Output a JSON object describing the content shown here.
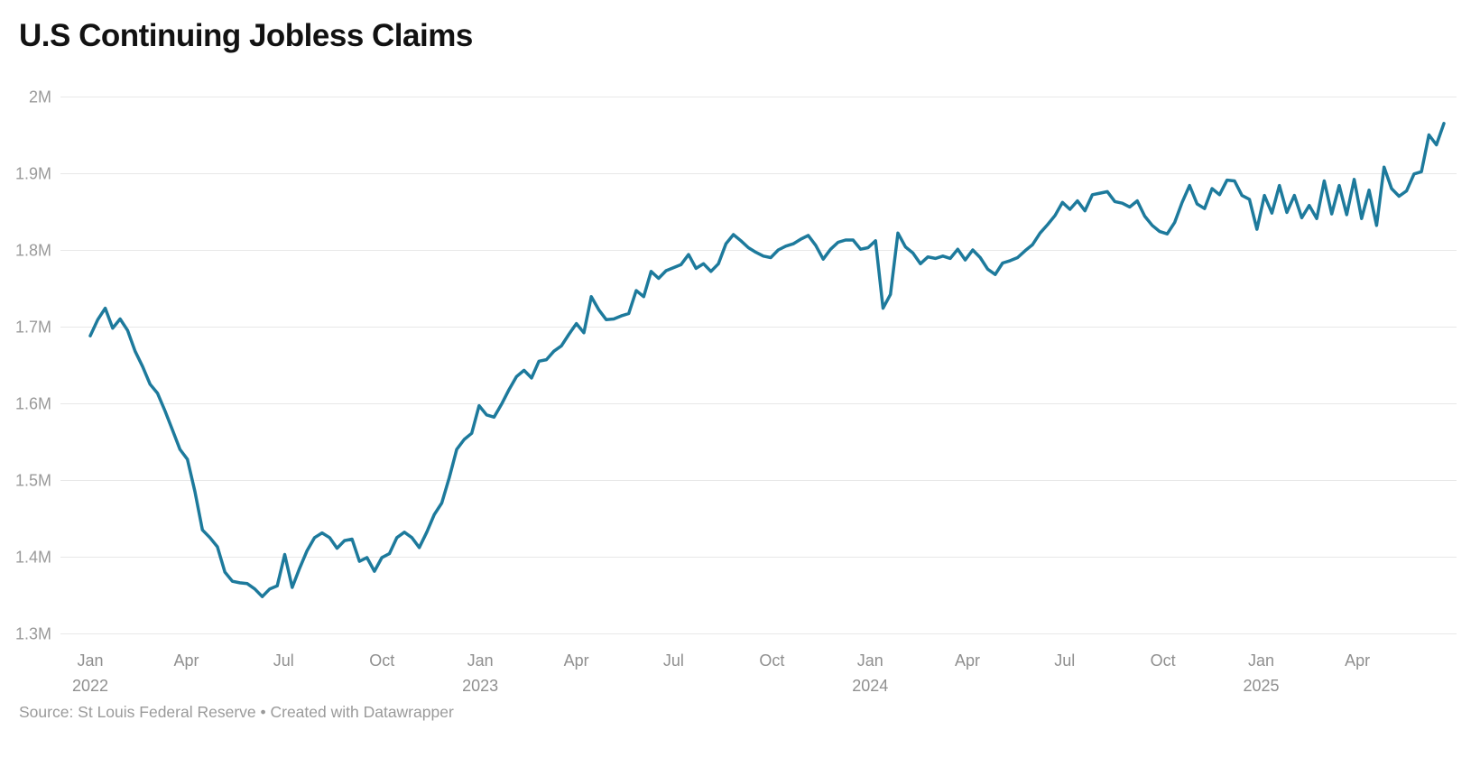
{
  "title": "U.S Continuing Jobless Claims",
  "source_line": "Source: St Louis Federal Reserve • Created with Datawrapper",
  "colors": {
    "line": "#1d7a9c",
    "grid": "#e8e8e8",
    "y_tick_label": "#9a9a9a",
    "x_tick_label": "#8f8f8f",
    "title": "#121212",
    "background": "#ffffff"
  },
  "chart_data": {
    "type": "line",
    "title": "U.S Continuing Jobless Claims",
    "series_name": "Continuing jobless claims",
    "unit": "millions",
    "start_date": "2022-01-01",
    "frequency": "weekly",
    "ylim": [
      1.3,
      2.0
    ],
    "grid": "horizontal",
    "legend": "none",
    "y_ticks": [
      {
        "value": 2.0,
        "label": "2M"
      },
      {
        "value": 1.9,
        "label": "1.9M"
      },
      {
        "value": 1.8,
        "label": "1.8M"
      },
      {
        "value": 1.7,
        "label": "1.7M"
      },
      {
        "value": 1.6,
        "label": "1.6M"
      },
      {
        "value": 1.5,
        "label": "1.5M"
      },
      {
        "value": 1.4,
        "label": "1.4M"
      },
      {
        "value": 1.3,
        "label": "1.3M"
      }
    ],
    "x_ticks": [
      {
        "date": "2022-01-01",
        "label": "Jan",
        "year": "2022"
      },
      {
        "date": "2022-04-01",
        "label": "Apr"
      },
      {
        "date": "2022-07-01",
        "label": "Jul"
      },
      {
        "date": "2022-10-01",
        "label": "Oct"
      },
      {
        "date": "2023-01-01",
        "label": "Jan",
        "year": "2023"
      },
      {
        "date": "2023-04-01",
        "label": "Apr"
      },
      {
        "date": "2023-07-01",
        "label": "Jul"
      },
      {
        "date": "2023-10-01",
        "label": "Oct"
      },
      {
        "date": "2024-01-01",
        "label": "Jan",
        "year": "2024"
      },
      {
        "date": "2024-04-01",
        "label": "Apr"
      },
      {
        "date": "2024-07-01",
        "label": "Jul"
      },
      {
        "date": "2024-10-01",
        "label": "Oct"
      },
      {
        "date": "2025-01-01",
        "label": "Jan",
        "year": "2025"
      },
      {
        "date": "2025-04-01",
        "label": "Apr"
      }
    ],
    "values_millions": [
      1.688,
      1.709,
      1.724,
      1.698,
      1.71,
      1.695,
      1.668,
      1.648,
      1.625,
      1.613,
      1.59,
      1.565,
      1.54,
      1.527,
      1.485,
      1.435,
      1.425,
      1.413,
      1.38,
      1.368,
      1.366,
      1.365,
      1.358,
      1.348,
      1.358,
      1.362,
      1.403,
      1.36,
      1.385,
      1.408,
      1.425,
      1.431,
      1.425,
      1.411,
      1.421,
      1.423,
      1.394,
      1.399,
      1.381,
      1.399,
      1.404,
      1.425,
      1.432,
      1.425,
      1.412,
      1.432,
      1.455,
      1.47,
      1.503,
      1.54,
      1.553,
      1.561,
      1.597,
      1.585,
      1.582,
      1.599,
      1.618,
      1.635,
      1.643,
      1.633,
      1.655,
      1.657,
      1.668,
      1.675,
      1.69,
      1.704,
      1.692,
      1.739,
      1.722,
      1.709,
      1.71,
      1.714,
      1.717,
      1.747,
      1.739,
      1.772,
      1.763,
      1.773,
      1.777,
      1.781,
      1.794,
      1.776,
      1.782,
      1.772,
      1.782,
      1.808,
      1.82,
      1.812,
      1.803,
      1.797,
      1.792,
      1.79,
      1.8,
      1.805,
      1.808,
      1.814,
      1.819,
      1.806,
      1.788,
      1.801,
      1.81,
      1.813,
      1.813,
      1.801,
      1.803,
      1.812,
      1.724,
      1.742,
      1.822,
      1.804,
      1.796,
      1.782,
      1.791,
      1.789,
      1.792,
      1.789,
      1.801,
      1.787,
      1.8,
      1.79,
      1.775,
      1.768,
      1.783,
      1.786,
      1.79,
      1.799,
      1.807,
      1.822,
      1.833,
      1.845,
      1.862,
      1.853,
      1.864,
      1.851,
      1.872,
      1.874,
      1.876,
      1.863,
      1.861,
      1.856,
      1.864,
      1.844,
      1.832,
      1.824,
      1.821,
      1.836,
      1.862,
      1.884,
      1.86,
      1.854,
      1.88,
      1.872,
      1.891,
      1.89,
      1.871,
      1.866,
      1.827,
      1.871,
      1.848,
      1.884,
      1.849,
      1.871,
      1.842,
      1.858,
      1.841,
      1.89,
      1.847,
      1.884,
      1.846,
      1.892,
      1.841,
      1.878,
      1.832,
      1.908,
      1.88,
      1.87,
      1.877,
      1.899,
      1.902,
      1.95,
      1.937,
      1.965
    ]
  }
}
